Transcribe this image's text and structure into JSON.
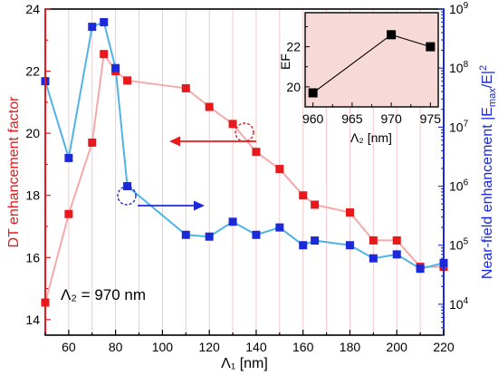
{
  "colors": {
    "dt": "#e8191c",
    "dt_line": "#f4a9ab",
    "nf": "#1b29d8",
    "nf_line": "#4fb3e8",
    "inset_bg": "#f7d9d8",
    "axis": "#000000",
    "grid": "#f3c9c9"
  },
  "chart_data": [
    {
      "type": "line",
      "xlabel": "Λ₁ [nm]",
      "ylabel_left": "DT enhancement factor",
      "ylabel_right": "Near-field enhancement |E_max/E|²",
      "xlim": [
        50,
        220
      ],
      "ylim_left": [
        13.5,
        24
      ],
      "ylim_right_log": [
        3000,
        1000000000
      ],
      "y_right_scale": "log",
      "grid": "vertical",
      "x_ticks": [
        "60",
        "80",
        "100",
        "120",
        "140",
        "160",
        "180",
        "200",
        "220"
      ],
      "y_left_ticks": [
        "14",
        "16",
        "18",
        "20",
        "22",
        "24"
      ],
      "y_right_ticks": [
        {
          "base": "10",
          "exp": "4"
        },
        {
          "base": "10",
          "exp": "5"
        },
        {
          "base": "10",
          "exp": "6"
        },
        {
          "base": "10",
          "exp": "7"
        },
        {
          "base": "10",
          "exp": "8"
        },
        {
          "base": "10",
          "exp": "9"
        }
      ],
      "annotation": "Λ₂ = 970 nm",
      "series": [
        {
          "axis": "left",
          "x": [
            50,
            60,
            70,
            75,
            80,
            85,
            110,
            120,
            130,
            140,
            150,
            160,
            165,
            180,
            190,
            200,
            210,
            220
          ],
          "y": [
            14.55,
            17.4,
            19.7,
            22.55,
            22.0,
            21.7,
            21.45,
            20.85,
            20.3,
            19.4,
            18.85,
            18.0,
            17.7,
            17.45,
            16.55,
            16.55,
            15.7,
            15.7
          ]
        },
        {
          "axis": "right",
          "x": [
            50,
            60,
            70,
            75,
            80,
            85,
            110,
            120,
            130,
            140,
            150,
            160,
            165,
            180,
            190,
            200,
            210,
            220
          ],
          "y": [
            60000000,
            3000000,
            500000000,
            600000000,
            100000000,
            1000000,
            150000,
            140000,
            250000,
            150000,
            200000,
            100000,
            120000,
            100000,
            60000,
            70000,
            40000,
            50000
          ]
        }
      ]
    },
    {
      "type": "line",
      "xlabel": "Λ₂ [nm]",
      "ylabel": "EF",
      "xlim": [
        959,
        976
      ],
      "ylim": [
        19,
        23.7
      ],
      "x_ticks": [
        "960",
        "965",
        "970",
        "975"
      ],
      "y_ticks": [
        "20",
        "22"
      ],
      "series": [
        {
          "x": [
            960,
            970,
            975
          ],
          "y": [
            19.7,
            22.6,
            22.0
          ]
        }
      ]
    }
  ]
}
